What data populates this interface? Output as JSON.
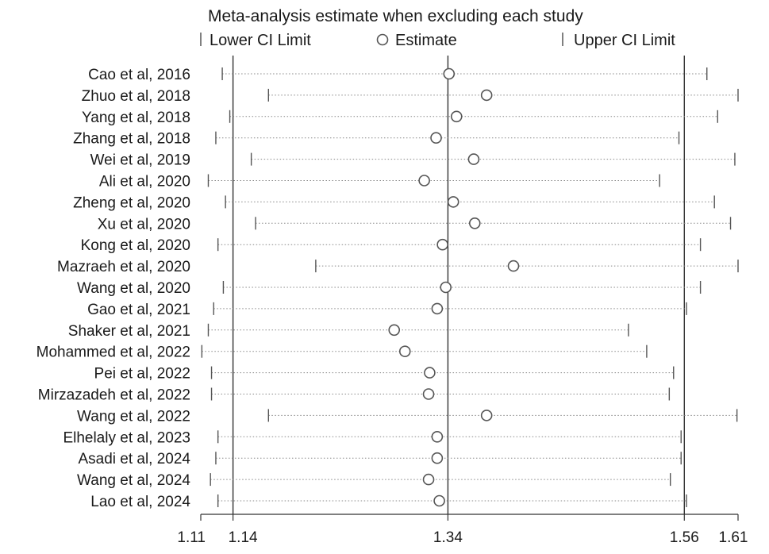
{
  "chart_data": {
    "type": "forest-sensitivity",
    "title": "Meta-analysis estimate when excluding each study",
    "legend": {
      "lower": "Lower CI Limit",
      "estimate": "Estimate",
      "upper": "Upper CI Limit"
    },
    "xlim": [
      1.11,
      1.61
    ],
    "xticks": [
      {
        "value": 1.11,
        "label": "1.11"
      },
      {
        "value": 1.14,
        "label": "1.14"
      },
      {
        "value": 1.34,
        "label": "1.34"
      },
      {
        "value": 1.56,
        "label": "1.56"
      },
      {
        "value": 1.61,
        "label": "1.61"
      }
    ],
    "reference_lines": [
      1.14,
      1.34,
      1.56
    ],
    "colors": {
      "line": "#333333",
      "dotted": "#888888",
      "marker": "#555555"
    },
    "studies": [
      {
        "label": "Cao et al, 2016",
        "lower": 1.13,
        "estimate": 1.341,
        "upper": 1.581
      },
      {
        "label": "Zhuo et al, 2018",
        "lower": 1.173,
        "estimate": 1.376,
        "upper": 1.61
      },
      {
        "label": "Yang et al, 2018",
        "lower": 1.137,
        "estimate": 1.348,
        "upper": 1.591
      },
      {
        "label": "Zhang et al, 2018",
        "lower": 1.124,
        "estimate": 1.329,
        "upper": 1.555
      },
      {
        "label": "Wei et al, 2019",
        "lower": 1.157,
        "estimate": 1.364,
        "upper": 1.607
      },
      {
        "label": "Ali et al, 2020",
        "lower": 1.117,
        "estimate": 1.318,
        "upper": 1.537
      },
      {
        "label": "Zheng et al, 2020",
        "lower": 1.133,
        "estimate": 1.345,
        "upper": 1.588
      },
      {
        "label": "Xu et al, 2020",
        "lower": 1.161,
        "estimate": 1.365,
        "upper": 1.603
      },
      {
        "label": "Kong et al, 2020",
        "lower": 1.126,
        "estimate": 1.335,
        "upper": 1.575
      },
      {
        "label": "Mazraeh et al, 2020",
        "lower": 1.217,
        "estimate": 1.401,
        "upper": 1.61
      },
      {
        "label": "Wang et al, 2020",
        "lower": 1.131,
        "estimate": 1.338,
        "upper": 1.575
      },
      {
        "label": "Gao et al, 2021",
        "lower": 1.122,
        "estimate": 1.33,
        "upper": 1.562
      },
      {
        "label": "Shaker et al, 2021",
        "lower": 1.117,
        "estimate": 1.29,
        "upper": 1.508
      },
      {
        "label": "Mohammed et al, 2022",
        "lower": 1.111,
        "estimate": 1.3,
        "upper": 1.525
      },
      {
        "label": "Pei et al, 2022",
        "lower": 1.12,
        "estimate": 1.323,
        "upper": 1.55
      },
      {
        "label": "Mirzazadeh et al, 2022",
        "lower": 1.12,
        "estimate": 1.322,
        "upper": 1.546
      },
      {
        "label": "Wang et al, 2022",
        "lower": 1.173,
        "estimate": 1.376,
        "upper": 1.609
      },
      {
        "label": "Elhelaly et al, 2023",
        "lower": 1.126,
        "estimate": 1.33,
        "upper": 1.557
      },
      {
        "label": "Asadi et al, 2024",
        "lower": 1.124,
        "estimate": 1.33,
        "upper": 1.557
      },
      {
        "label": "Wang et al, 2024",
        "lower": 1.119,
        "estimate": 1.322,
        "upper": 1.547
      },
      {
        "label": "Lao et al, 2024",
        "lower": 1.126,
        "estimate": 1.332,
        "upper": 1.562
      }
    ]
  }
}
